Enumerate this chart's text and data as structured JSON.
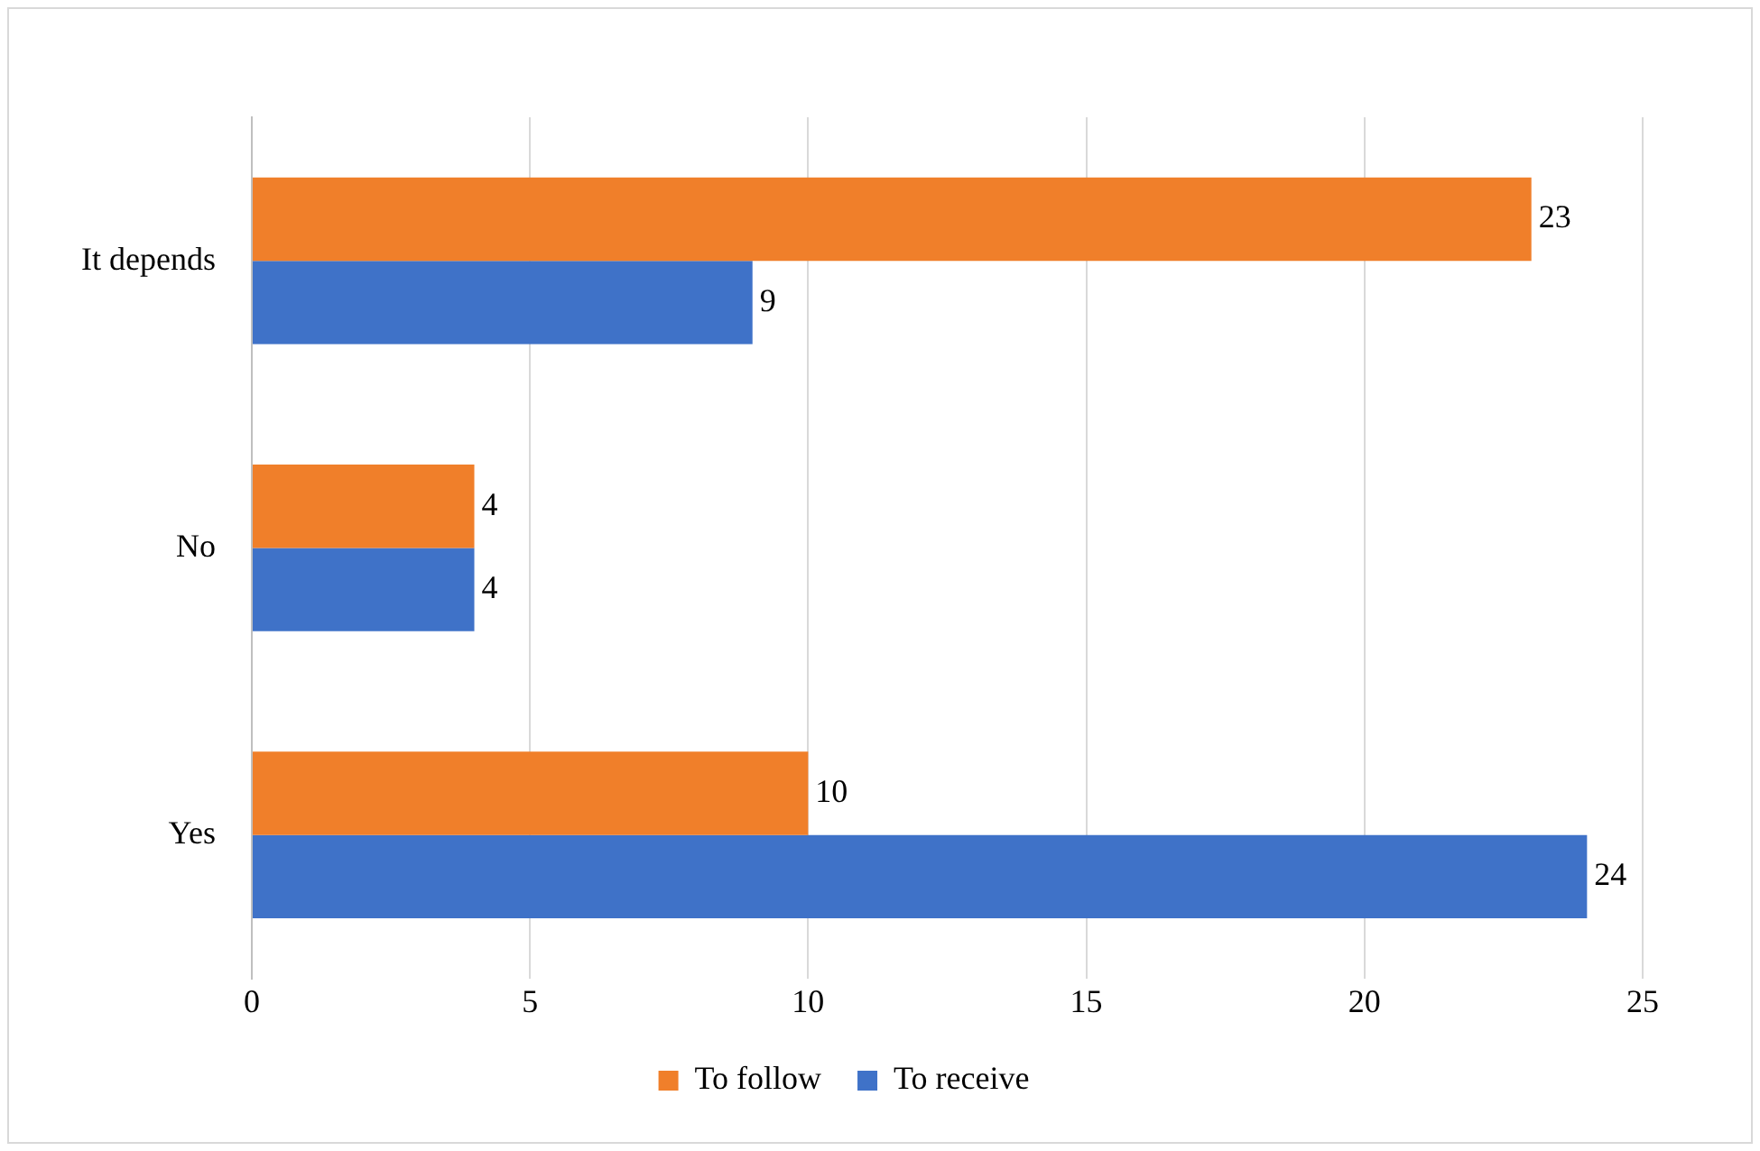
{
  "chart_data": {
    "type": "bar",
    "orientation": "horizontal",
    "categories": [
      "It depends",
      "No",
      "Yes"
    ],
    "series": [
      {
        "name": "To follow",
        "color": "#f07f2a",
        "values": [
          23,
          4,
          10
        ]
      },
      {
        "name": "To receive",
        "color": "#3f72c8",
        "values": [
          9,
          4,
          24
        ]
      }
    ],
    "xlim": [
      0,
      25
    ],
    "xticks": [
      0,
      5,
      10,
      15,
      20,
      25
    ],
    "grid": "x",
    "legend": "bottom",
    "data_labels": true
  }
}
